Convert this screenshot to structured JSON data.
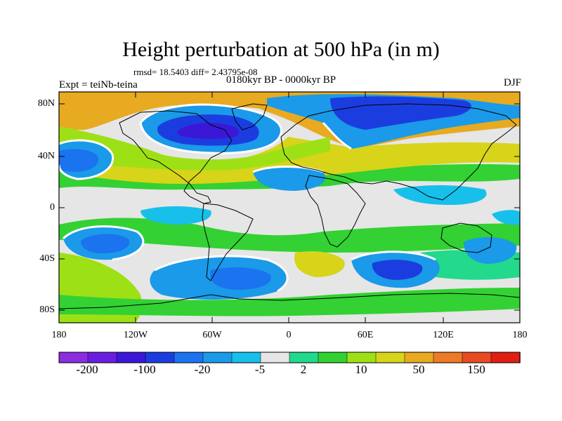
{
  "title": "Height perturbation at 500 hPa (in m)",
  "stats": "rmsd= 18.5403 diff= 2.43795e-08",
  "experiment": "Expt = teiNb-teina",
  "period": "0180kyr BP - 0000kyr BP",
  "season": "DJF",
  "axes": {
    "lat_labels": [
      "80N",
      "40N",
      "0",
      "40S",
      "80S"
    ],
    "lon_labels": [
      "180",
      "120W",
      "60W",
      "0",
      "60E",
      "120E",
      "180"
    ]
  },
  "colorbar": {
    "colors": [
      "#8c2de0",
      "#6a1fe0",
      "#3b18d8",
      "#1b3de0",
      "#1b73f0",
      "#1a9ae8",
      "#17c0ea",
      "#e6e6e6",
      "#22d98c",
      "#33d133",
      "#9ee016",
      "#d7d41a",
      "#e8aa20",
      "#ec7a26",
      "#e84a22",
      "#e01e14"
    ],
    "labels": [
      "-200",
      "-100",
      "-20",
      "-5",
      "2",
      "10",
      "50",
      "150"
    ]
  },
  "colors": {
    "ocean_background": "#e6e6e6",
    "contour_white": "#ffffff",
    "coastline": "#000000"
  }
}
